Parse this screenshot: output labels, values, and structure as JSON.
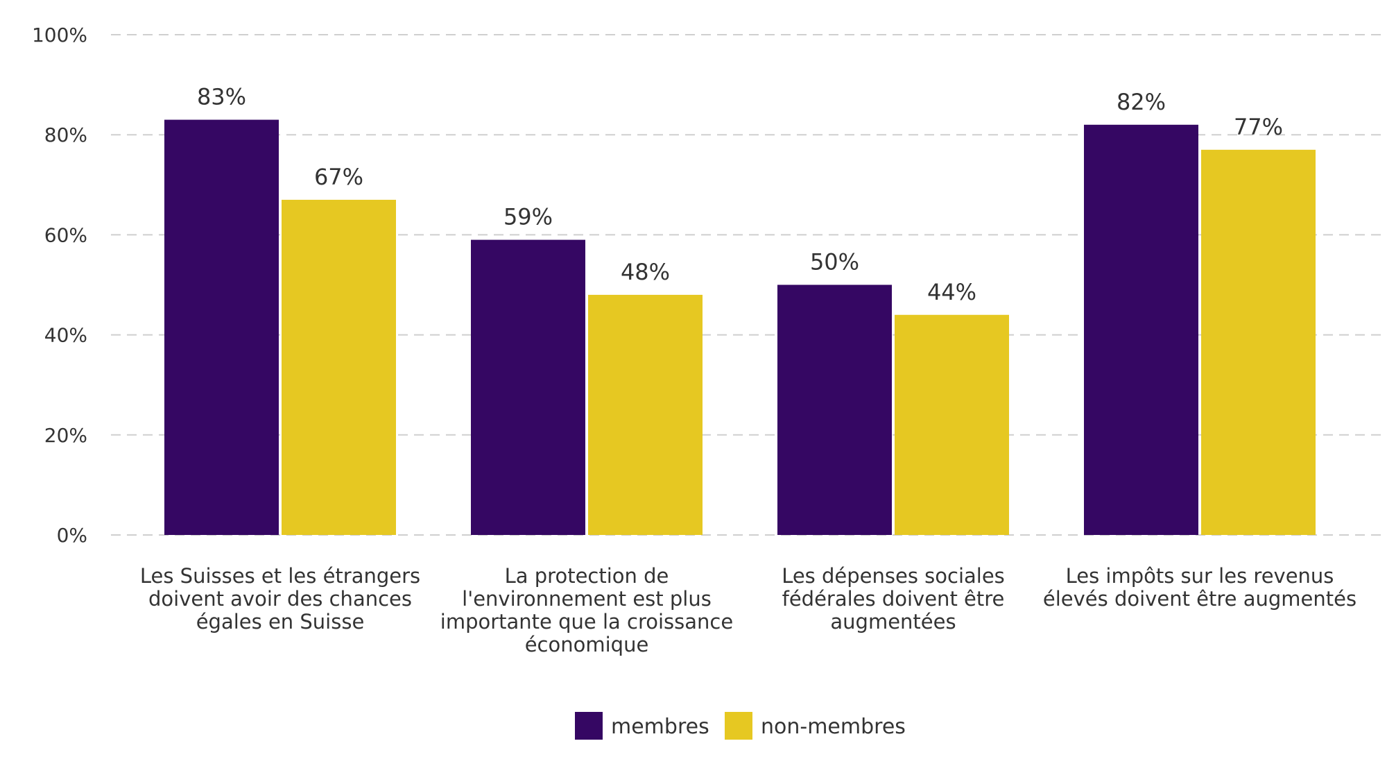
{
  "chart_data": {
    "type": "bar",
    "categories": [
      [
        "Les Suisses et les étrangers",
        "doivent avoir des chances",
        "égales en Suisse"
      ],
      [
        "La protection de",
        "l'environnement est plus",
        "importante que la croissance",
        "économique"
      ],
      [
        "Les dépenses sociales",
        "fédérales doivent être",
        "augmentées"
      ],
      [
        "Les impôts sur les revenus",
        "élevés doivent être augmentés"
      ]
    ],
    "series": [
      {
        "name": "membres",
        "color": "#350763",
        "values": [
          83,
          59,
          50,
          82
        ]
      },
      {
        "name": "non-membres",
        "color": "#E6C822",
        "values": [
          67,
          48,
          44,
          77
        ]
      }
    ],
    "ylim": [
      0,
      100
    ],
    "yticks": [
      0,
      20,
      40,
      60,
      80,
      100
    ],
    "ytick_labels": [
      "0%",
      "20%",
      "40%",
      "60%",
      "80%",
      "100%"
    ],
    "value_suffix": "%",
    "grid": true,
    "legend_position": "bottom-center",
    "title": "",
    "xlabel": "",
    "ylabel": ""
  }
}
